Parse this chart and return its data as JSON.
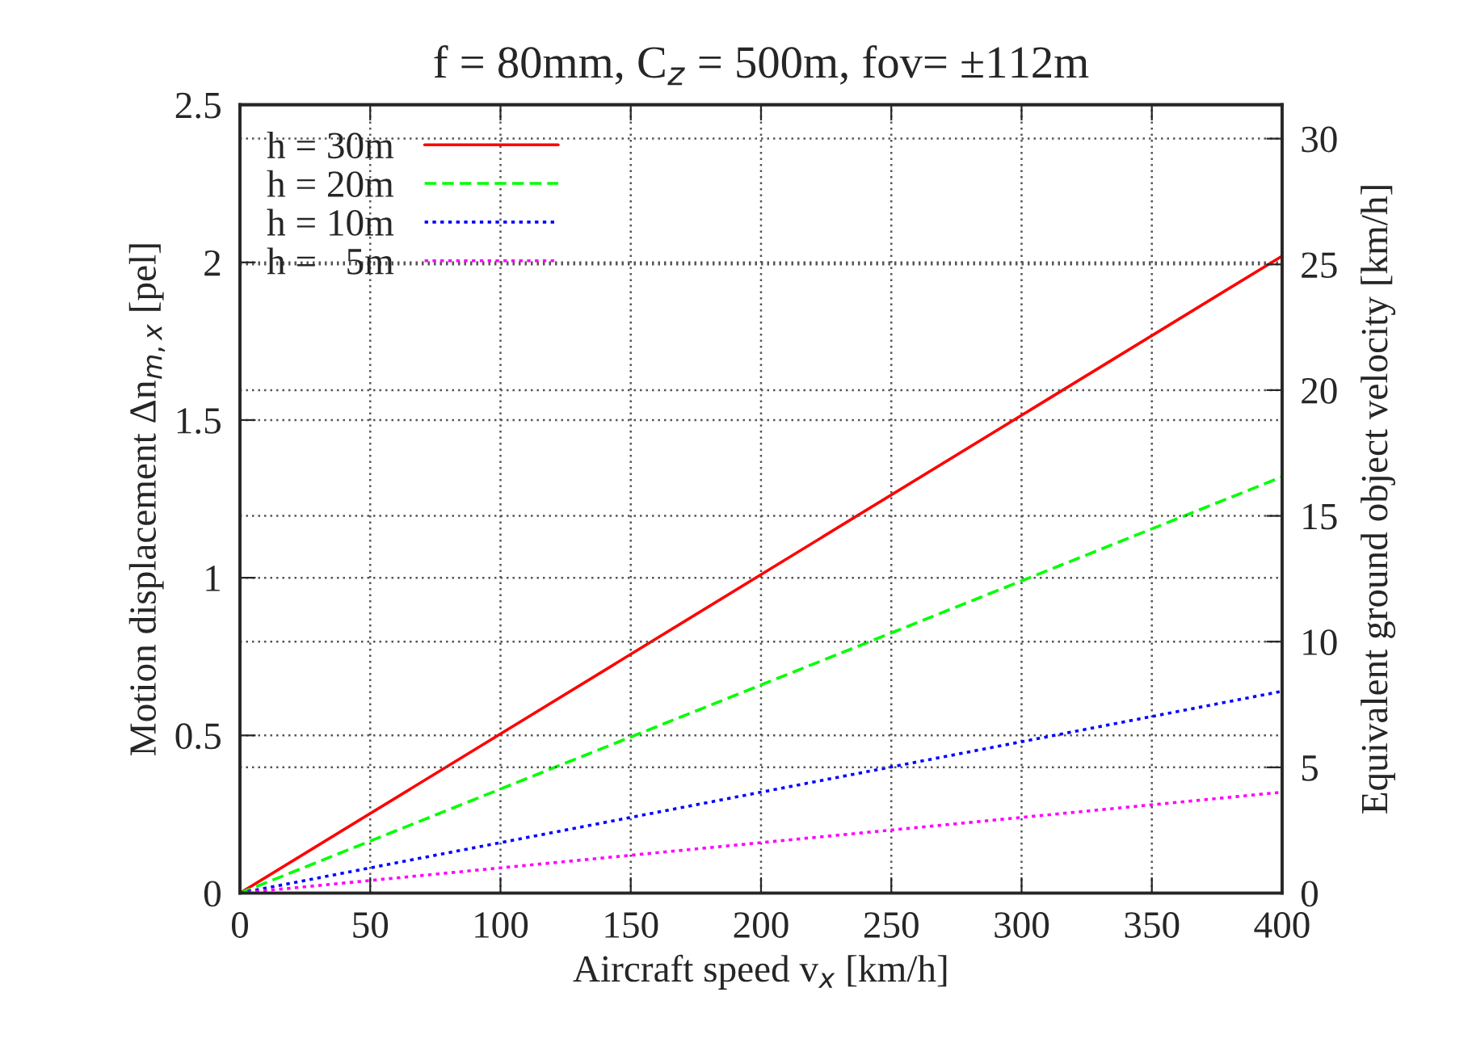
{
  "chart_data": {
    "type": "line",
    "title": "f = 80mm, C$_{z}$ = 500m, fov= ±112m",
    "xlabel": "Aircraft speed v$_{x}$ [km/h]",
    "ylabel": "Motion displacement Δn$_{m,x}$ [pel]",
    "y2label": "Equivalent ground object velocity [km/h]",
    "x": [
      0,
      400
    ],
    "series": [
      {
        "name": "h = 30m",
        "color": "#ff0000",
        "line_style": "solid",
        "values": [
          0,
          2.02
        ]
      },
      {
        "name": "h = 20m",
        "color": "#00ff00",
        "line_style": "dashed",
        "values": [
          0,
          1.32
        ]
      },
      {
        "name": "h = 10m",
        "color": "#0000ff",
        "line_style": "dotted",
        "values": [
          0,
          0.64
        ]
      },
      {
        "name": "h =   5m",
        "color": "#ff00ff",
        "line_style": "dotted",
        "values": [
          0,
          0.32
        ]
      }
    ],
    "xlim": [
      0,
      400
    ],
    "xticks": [
      0,
      50,
      100,
      150,
      200,
      250,
      300,
      350,
      400
    ],
    "ylim": [
      0,
      2.5
    ],
    "yticks": [
      0,
      0.5,
      1,
      1.5,
      2,
      2.5
    ],
    "y2lim": [
      0,
      31.35
    ],
    "y2ticks": [
      0,
      5,
      10,
      15,
      20,
      25,
      30
    ],
    "grid": true,
    "legend": "top left"
  }
}
